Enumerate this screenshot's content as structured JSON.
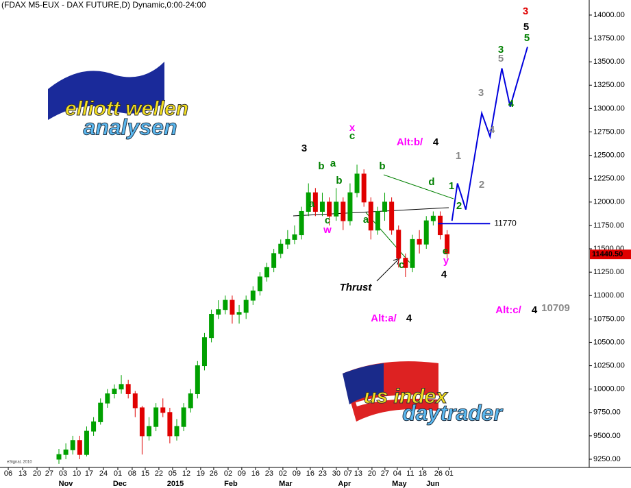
{
  "header": "(FDAX M5-EUX - DAX FUTURE,D) Dynamic,0:00-24:00",
  "watermark": "eSignal, 2010",
  "logos": {
    "top": [
      "elliott wellen",
      "analysen"
    ],
    "bottom": [
      "us index",
      "daytrader"
    ]
  },
  "annotations": [
    "3",
    "5",
    "5",
    "3",
    "5",
    "3",
    "4",
    "4",
    "1",
    "2",
    "1",
    "2",
    "x",
    "c",
    "3",
    "Alt:b/",
    "4",
    "b",
    "a",
    "b",
    "a",
    "c",
    "w",
    "b",
    "d",
    "a",
    "c",
    "e",
    "y",
    "4",
    "Thrust",
    "Alt:a/",
    "4",
    "Alt:c/",
    "4",
    "10709"
  ],
  "chart_data": {
    "type": "candlestick",
    "up_color": "#00a000",
    "down_color": "#e00000",
    "open": [
      9250,
      9300,
      9350,
      9450,
      9300,
      9550,
      9650,
      9850,
      9950,
      10000,
      10050,
      9950,
      9800,
      9500,
      9600,
      9800,
      9750,
      9500,
      9600,
      9800,
      9950,
      10250,
      10550,
      10800,
      10850,
      10950,
      10800,
      10820,
      10950,
      11050,
      11200,
      11300,
      11450,
      11550,
      11600,
      11650,
      11900,
      12100,
      11900,
      12000,
      11850,
      12000,
      11800,
      12100,
      12300,
      12000,
      11700,
      11900,
      12000,
      11700,
      11400,
      11300,
      11600,
      11550,
      11800,
      11850,
      11650
    ],
    "high": [
      9360,
      9420,
      9500,
      9500,
      9600,
      9700,
      9900,
      10000,
      10050,
      10150,
      10100,
      9980,
      9820,
      9700,
      9850,
      9900,
      9800,
      9680,
      9850,
      10000,
      10300,
      10600,
      10850,
      10950,
      11000,
      11000,
      10900,
      11000,
      11100,
      11250,
      11350,
      11500,
      11600,
      11700,
      11750,
      11950,
      12200,
      12150,
      12100,
      12050,
      12150,
      12050,
      12200,
      12400,
      12350,
      12050,
      11950,
      12100,
      12050,
      11750,
      11450,
      11650,
      11700,
      11850,
      11900,
      11900,
      11700
    ],
    "low": [
      9200,
      9250,
      9300,
      9250,
      9280,
      9500,
      9620,
      9800,
      9900,
      9950,
      9900,
      9700,
      9300,
      9450,
      9550,
      9700,
      9420,
      9450,
      9550,
      9750,
      9900,
      10200,
      10500,
      10750,
      10800,
      10700,
      10700,
      10750,
      10900,
      11000,
      11150,
      11250,
      11400,
      11500,
      11550,
      11600,
      11850,
      11850,
      11850,
      11750,
      11800,
      11700,
      11750,
      12050,
      11950,
      11600,
      11650,
      11800,
      11650,
      11300,
      11200,
      11250,
      11450,
      11500,
      11750,
      11600,
      11400
    ],
    "close": [
      9300,
      9350,
      9450,
      9300,
      9550,
      9650,
      9850,
      9950,
      10000,
      10050,
      9950,
      9800,
      9500,
      9600,
      9800,
      9750,
      9500,
      9600,
      9800,
      9950,
      10250,
      10550,
      10800,
      10850,
      10950,
      10800,
      10820,
      10950,
      11050,
      11200,
      11300,
      11450,
      11550,
      11600,
      11650,
      11900,
      12100,
      11900,
      12000,
      11850,
      12000,
      11800,
      12100,
      12300,
      12000,
      11700,
      11900,
      12000,
      11700,
      11400,
      11300,
      11600,
      11550,
      11800,
      11850,
      11650,
      11450
    ],
    "projection": {
      "color": "#0000dd",
      "x": [
        56.7,
        57.5,
        58.7,
        61,
        62.2,
        63.9,
        65.1,
        67.6
      ],
      "values": [
        11800,
        12200,
        11920,
        12950,
        12700,
        13430,
        13020,
        13660
      ]
    },
    "level": {
      "value": 11770,
      "xlim": [
        54.7,
        62.2
      ],
      "color": "#0000dd"
    },
    "last_price": {
      "value": 11440.5,
      "label": "11440.50",
      "color": "#e00000"
    },
    "xlim": [
      -8.5,
      76.5
    ],
    "ylim": [
      9162,
      14161
    ],
    "xticks": [
      {
        "value": -7.31,
        "label": "06"
      },
      {
        "value": -5.24,
        "label": "13"
      },
      {
        "value": -3.16,
        "label": "20"
      },
      {
        "value": -1.39,
        "label": "27"
      },
      {
        "value": 0.59,
        "label": "03"
      },
      {
        "value": 2.57,
        "label": "10"
      },
      {
        "value": 4.35,
        "label": "17"
      },
      {
        "value": 6.42,
        "label": "24"
      },
      {
        "value": 8.5,
        "label": "01"
      },
      {
        "value": 10.57,
        "label": "08"
      },
      {
        "value": 12.45,
        "label": "15"
      },
      {
        "value": 14.42,
        "label": "22"
      },
      {
        "value": 16.4,
        "label": "05"
      },
      {
        "value": 18.38,
        "label": "12"
      },
      {
        "value": 20.45,
        "label": "19"
      },
      {
        "value": 22.33,
        "label": "26"
      },
      {
        "value": 24.41,
        "label": "02"
      },
      {
        "value": 26.38,
        "label": "09"
      },
      {
        "value": 28.36,
        "label": "16"
      },
      {
        "value": 30.33,
        "label": "23"
      },
      {
        "value": 32.31,
        "label": "02"
      },
      {
        "value": 34.29,
        "label": "09"
      },
      {
        "value": 36.26,
        "label": "16"
      },
      {
        "value": 38.04,
        "label": "23"
      },
      {
        "value": 40.02,
        "label": "30"
      },
      {
        "value": 41.7,
        "label": "07"
      },
      {
        "value": 43.18,
        "label": "13"
      },
      {
        "value": 45.16,
        "label": "20"
      },
      {
        "value": 47.03,
        "label": "27"
      },
      {
        "value": 48.81,
        "label": "04"
      },
      {
        "value": 50.69,
        "label": "11"
      },
      {
        "value": 52.47,
        "label": "18"
      },
      {
        "value": 54.74,
        "label": "26"
      },
      {
        "value": 56.32,
        "label": "01"
      }
    ],
    "month_ticks": [
      {
        "value": 0.99,
        "label": "Nov"
      },
      {
        "value": 8.79,
        "label": "Dec"
      },
      {
        "value": 16.8,
        "label": "2015"
      },
      {
        "value": 24.8,
        "label": "Feb"
      },
      {
        "value": 32.71,
        "label": "Mar"
      },
      {
        "value": 41.2,
        "label": "Apr"
      },
      {
        "value": 49.11,
        "label": "May"
      },
      {
        "value": 53.95,
        "label": "Jun"
      }
    ],
    "yticks": [
      {
        "value": 9250,
        "label": "9250.00"
      },
      {
        "value": 9500,
        "label": "9500.00"
      },
      {
        "value": 9750,
        "label": "9750.00"
      },
      {
        "value": 10000,
        "label": "10000.00"
      },
      {
        "value": 10250,
        "label": "10250.00"
      },
      {
        "value": 10500,
        "label": "10500.00"
      },
      {
        "value": 10750,
        "label": "10750.00"
      },
      {
        "value": 11000,
        "label": "11000.00"
      },
      {
        "value": 11250,
        "label": "11250.00"
      },
      {
        "value": 11500,
        "label": "11500.00"
      },
      {
        "value": 11750,
        "label": "11750.00"
      },
      {
        "value": 12000,
        "label": "12000.00"
      },
      {
        "value": 12250,
        "label": "12250.00"
      },
      {
        "value": 12500,
        "label": "12500.00"
      },
      {
        "value": 12750,
        "label": "12750.00"
      },
      {
        "value": 13000,
        "label": "13000.00"
      },
      {
        "value": 13250,
        "label": "13250.00"
      },
      {
        "value": 13500,
        "label": "13500.00"
      },
      {
        "value": 13750,
        "label": "13750.00"
      },
      {
        "value": 14000,
        "label": "14000.00"
      }
    ]
  }
}
